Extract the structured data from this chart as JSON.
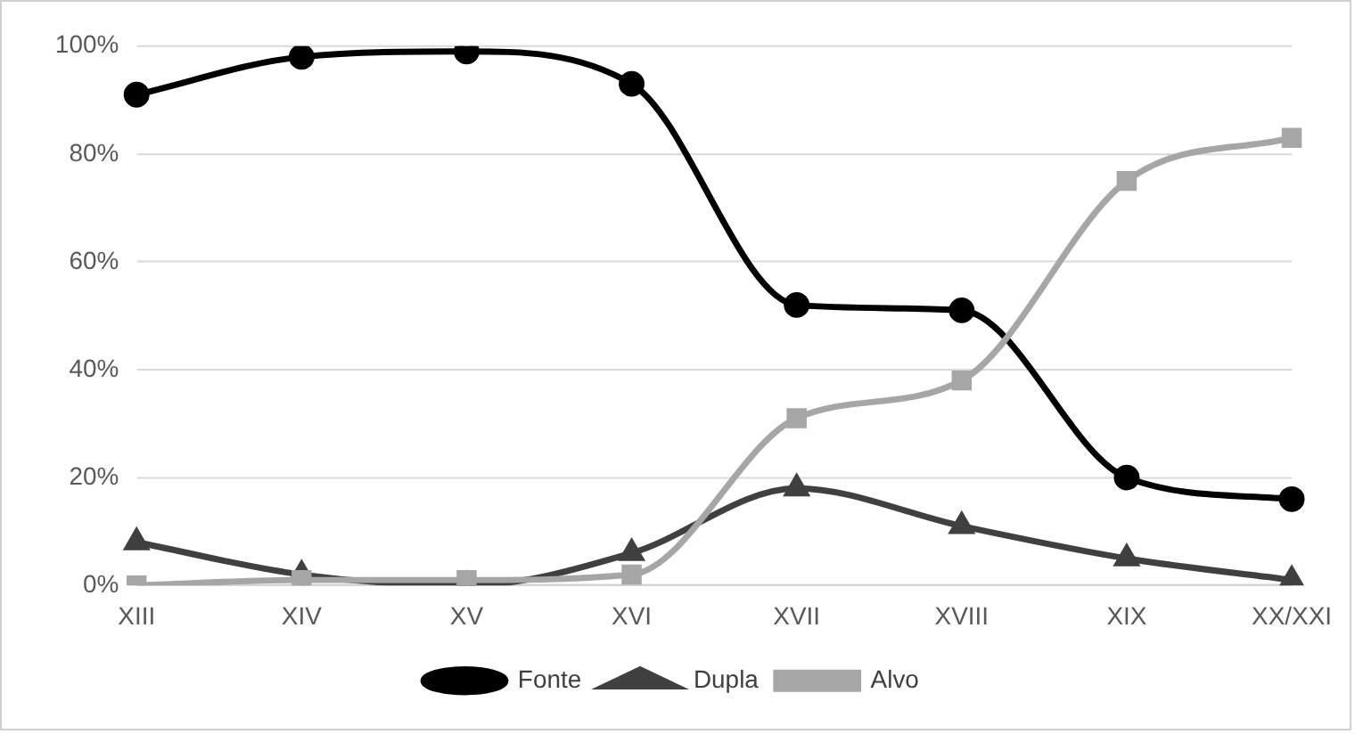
{
  "chart_data": {
    "type": "line",
    "categories": [
      "XIII",
      "XIV",
      "XV",
      "XVI",
      "XVII",
      "XVIII",
      "XIX",
      "XX/XXI"
    ],
    "series": [
      {
        "name": "Fonte",
        "color": "#000000",
        "marker": "circle",
        "values": [
          91,
          98,
          99,
          93,
          52,
          51,
          20,
          16
        ]
      },
      {
        "name": "Dupla",
        "color": "#404040",
        "marker": "triangle",
        "values": [
          8,
          2,
          0,
          6,
          18,
          11,
          5,
          1
        ]
      },
      {
        "name": "Alvo",
        "color": "#a6a6a6",
        "marker": "square",
        "values": [
          0,
          1,
          1,
          2,
          31,
          38,
          75,
          83
        ]
      }
    ],
    "ylim": [
      0,
      100
    ],
    "yticks": [
      {
        "value": 0,
        "label": "0%"
      },
      {
        "value": 20,
        "label": "20%"
      },
      {
        "value": 40,
        "label": "40%"
      },
      {
        "value": 60,
        "label": "60%"
      },
      {
        "value": 80,
        "label": "80%"
      },
      {
        "value": 100,
        "label": "100%"
      }
    ],
    "grid": "y",
    "legend": "bottom"
  }
}
